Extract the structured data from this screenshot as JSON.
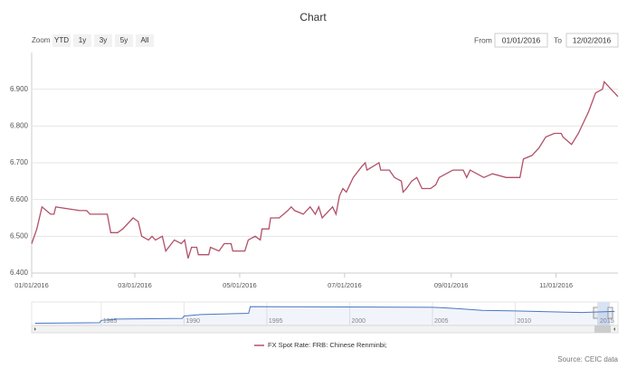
{
  "chart_data": {
    "type": "line",
    "title": "Chart",
    "zoom": {
      "label": "Zoom",
      "buttons": [
        "YTD",
        "1y",
        "3y",
        "5y",
        "All"
      ]
    },
    "range": {
      "from_label": "From",
      "from": "01/01/2016",
      "to_label": "To",
      "to": "12/02/2016"
    },
    "x": [
      "01/01/2016",
      "01/04/2016",
      "01/07/2016",
      "01/12/2016",
      "01/14/2016",
      "01/15/2016",
      "01/29/2016",
      "02/02/2016",
      "02/04/2016",
      "02/14/2016",
      "02/16/2016",
      "02/20/2016",
      "02/23/2016",
      "02/29/2016",
      "03/03/2016",
      "03/05/2016",
      "03/09/2016",
      "03/11/2016",
      "03/13/2016",
      "03/17/2016",
      "03/19/2016",
      "03/24/2016",
      "03/28/2016",
      "03/30/2016",
      "04/01/2016",
      "04/03/2016",
      "04/06/2016",
      "04/07/2016",
      "04/13/2016",
      "04/14/2016",
      "04/19/2016",
      "04/22/2016",
      "04/26/2016",
      "04/27/2016",
      "05/04/2016",
      "05/06/2016",
      "05/10/2016",
      "05/13/2016",
      "05/14/2016",
      "05/18/2016",
      "05/19/2016",
      "05/24/2016",
      "05/29/2016",
      "05/31/2016",
      "06/02/2016",
      "06/07/2016",
      "06/11/2016",
      "06/14/2016",
      "06/16/2016",
      "06/18/2016",
      "06/24/2016",
      "06/26/2016",
      "06/28/2016",
      "06/30/2016",
      "07/02/2016",
      "07/06/2016",
      "07/11/2016",
      "07/13/2016",
      "07/14/2016",
      "07/21/2016",
      "07/22/2016",
      "07/27/2016",
      "07/30/2016",
      "08/03/2016",
      "08/04/2016",
      "08/06/2016",
      "08/09/2016",
      "08/12/2016",
      "08/15/2016",
      "08/20/2016",
      "08/23/2016",
      "08/25/2016",
      "08/29/2016",
      "09/02/2016",
      "09/08/2016",
      "09/10/2016",
      "09/12/2016",
      "09/20/2016",
      "09/25/2016",
      "10/03/2016",
      "10/11/2016",
      "10/13/2016",
      "10/18/2016",
      "10/22/2016",
      "10/26/2016",
      "10/31/2016",
      "11/04/2016",
      "11/05/2016",
      "11/10/2016",
      "11/14/2016",
      "11/20/2016",
      "11/24/2016",
      "11/28/2016",
      "11/29/2016",
      "12/01/2016",
      "12/03/2016",
      "12/05/2016",
      "12/07/2016"
    ],
    "series": [
      {
        "name": "FX Spot Rate: FRB: Chinese Renminbi;",
        "color": "#b25068",
        "values": [
          6.48,
          6.52,
          6.58,
          6.56,
          6.56,
          6.58,
          6.57,
          6.57,
          6.56,
          6.56,
          6.51,
          6.51,
          6.52,
          6.55,
          6.54,
          6.5,
          6.49,
          6.5,
          6.49,
          6.5,
          6.46,
          6.49,
          6.48,
          6.49,
          6.44,
          6.47,
          6.47,
          6.45,
          6.45,
          6.47,
          6.46,
          6.48,
          6.48,
          6.46,
          6.46,
          6.49,
          6.5,
          6.49,
          6.52,
          6.52,
          6.55,
          6.55,
          6.57,
          6.58,
          6.57,
          6.56,
          6.58,
          6.56,
          6.58,
          6.55,
          6.58,
          6.56,
          6.61,
          6.63,
          6.62,
          6.66,
          6.69,
          6.7,
          6.68,
          6.7,
          6.68,
          6.68,
          6.66,
          6.65,
          6.62,
          6.63,
          6.65,
          6.66,
          6.63,
          6.63,
          6.64,
          6.66,
          6.67,
          6.68,
          6.68,
          6.66,
          6.68,
          6.66,
          6.67,
          6.66,
          6.66,
          6.71,
          6.72,
          6.74,
          6.77,
          6.78,
          6.78,
          6.77,
          6.75,
          6.78,
          6.84,
          6.89,
          6.9,
          6.92,
          6.91,
          6.9,
          6.89,
          6.88
        ]
      }
    ],
    "xlim": [
      "01/01/2016",
      "12/07/2016"
    ],
    "xticks": [
      "01/01/2016",
      "03/01/2016",
      "05/01/2016",
      "07/01/2016",
      "09/01/2016",
      "11/01/2016"
    ],
    "ylim": [
      6.4,
      7.0
    ],
    "yticks": [
      {
        "value": 6.4,
        "label": "6.400"
      },
      {
        "value": 6.5,
        "label": "6.500"
      },
      {
        "value": 6.6,
        "label": "6.600"
      },
      {
        "value": 6.7,
        "label": "6.700"
      },
      {
        "value": 6.8,
        "label": "6.800"
      },
      {
        "value": 6.9,
        "label": "6.900"
      }
    ],
    "grid": true,
    "navigator": {
      "x": [
        1981,
        1984.9,
        1985,
        1986,
        1989.9,
        1990,
        1991,
        1993.9,
        1994,
        2005,
        2006,
        2008,
        2010,
        2014,
        2016
      ],
      "values": [
        1.7,
        1.9,
        2.9,
        3.4,
        3.7,
        4.7,
        5.3,
        5.8,
        8.6,
        8.28,
        8.0,
        7.0,
        6.8,
        6.15,
        6.6
      ],
      "color": "#4a78c2",
      "xlim": [
        1980.8,
        2016.2
      ],
      "ylim": [
        1.5,
        9
      ],
      "xticks": [
        1985,
        1990,
        1995,
        2000,
        2005,
        2010,
        2015
      ]
    },
    "source": "Source: CEIC data"
  }
}
